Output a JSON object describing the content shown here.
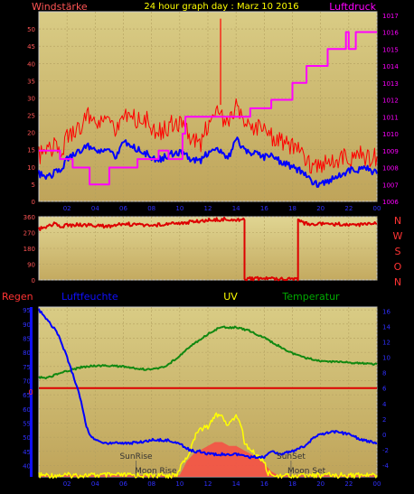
{
  "header": {
    "left": "Windstärke",
    "center": "24 hour graph day : Marz 10 2016",
    "right": "Luftdruck"
  },
  "footer": {
    "regen": "Regen",
    "luftfeuchte": "Luftfeuchte",
    "uv": "UV",
    "temperatur": "Temperatur"
  },
  "direction_letters": [
    "N",
    "W",
    "S",
    "O",
    "N"
  ],
  "annotations": {
    "sunrise": "SunRise",
    "moonrise": "Moon Rise",
    "sunset": "SunSet",
    "moonset": "Moon Set"
  },
  "colors": {
    "background": "#000000",
    "panel_bg": "#c9b66a",
    "panel_bg_light": "#e3d79a",
    "frame": "#d8d8d8",
    "gust": "#ff0000",
    "wind_avg": "#0000ff",
    "pressure": "#ff00ff",
    "direction": "#dd0000",
    "humidity": "#0000ff",
    "temperature": "#118811",
    "uv": "#ffff00",
    "solar": "#ff4040",
    "zero_line": "#dd0000",
    "left_axis_text": "#ff5555",
    "header_title": "#ffff00",
    "header_right": "#ff00ff",
    "humidity_label": "#1010ff",
    "uv_label": "#ffff00",
    "temp_label": "#00aa00"
  },
  "chart_data": [
    {
      "type": "line",
      "title": "",
      "x_ticks": [
        "02",
        "04",
        "06",
        "08",
        "10",
        "12",
        "14",
        "16",
        "18",
        "20",
        "22",
        "00"
      ],
      "xlim": [
        0,
        24
      ],
      "y_left": {
        "label": "Windstärke",
        "ticks": [
          0,
          5,
          10,
          15,
          20,
          25,
          30,
          35,
          40,
          45,
          50
        ],
        "lim": [
          0,
          55
        ]
      },
      "y_right": {
        "label": "Luftdruck",
        "ticks": [
          1006,
          1007,
          1008,
          1009,
          1010,
          1011,
          1012,
          1013,
          1014,
          1015,
          1016,
          1017
        ],
        "lim": [
          1006,
          1017.2
        ]
      },
      "series": [
        {
          "name": "gust",
          "axis": "left",
          "x": [
            0,
            0.5,
            1,
            1.5,
            2,
            2.5,
            3,
            3.5,
            4,
            4.5,
            5,
            5.5,
            6,
            6.5,
            7,
            7.5,
            8,
            8.5,
            9,
            9.5,
            10,
            10.5,
            11,
            11.5,
            12,
            12.5,
            12.9,
            13,
            13.5,
            14,
            14.5,
            15,
            15.5,
            16,
            16.5,
            17,
            17.5,
            18,
            18.5,
            19,
            19.5,
            20,
            20.5,
            21,
            21.5,
            22,
            22.5,
            23,
            23.5,
            24
          ],
          "y": [
            13,
            15,
            16,
            14,
            18,
            21,
            22,
            25,
            23,
            22,
            24,
            21,
            26,
            25,
            23,
            24,
            22,
            20,
            21,
            23,
            22,
            20,
            18,
            17,
            22,
            25,
            26,
            24,
            22,
            27,
            24,
            21,
            22,
            20,
            19,
            18,
            17,
            16,
            14,
            11,
            10,
            11,
            12,
            12,
            13,
            12,
            14,
            13,
            12,
            13
          ]
        },
        {
          "name": "wind_avg",
          "axis": "left",
          "x": [
            0,
            0.5,
            1,
            1.5,
            2,
            2.5,
            3,
            3.5,
            4,
            4.5,
            5,
            5.5,
            6,
            6.5,
            7,
            7.5,
            8,
            8.5,
            9,
            9.5,
            10,
            10.5,
            11,
            11.5,
            12,
            12.5,
            13,
            13.5,
            14,
            14.5,
            15,
            15.5,
            16,
            16.5,
            17,
            17.5,
            18,
            18.5,
            19,
            19.5,
            20,
            20.5,
            21,
            21.5,
            22,
            22.5,
            23,
            23.5,
            24
          ],
          "y": [
            8,
            7,
            8,
            9,
            12,
            14,
            15,
            16,
            15,
            14,
            15,
            13,
            18,
            16,
            15,
            14,
            13,
            12,
            13,
            14,
            14,
            13,
            12,
            12,
            14,
            15,
            14,
            13,
            18,
            15,
            14,
            14,
            13,
            13,
            12,
            11,
            10,
            9,
            7,
            5,
            5,
            6,
            7,
            8,
            9,
            9,
            10,
            9,
            8
          ]
        },
        {
          "name": "pressure",
          "axis": "right",
          "x": [
            0,
            1.5,
            1.5,
            2.4,
            2.4,
            3.0,
            3.0,
            3.6,
            3.6,
            5.0,
            5.0,
            7.0,
            7.0,
            8.5,
            8.5,
            9.2,
            9.2,
            10.2,
            10.2,
            10.4,
            10.4,
            12.0,
            12.0,
            15.0,
            15.0,
            16.5,
            16.5,
            18.0,
            18.0,
            19.0,
            19.0,
            20.5,
            20.5,
            21.8,
            21.8,
            22.0,
            22.0,
            22.5,
            22.5,
            22.8,
            22.8,
            24.0
          ],
          "y": [
            1009,
            1009,
            1008.5,
            1008.5,
            1008,
            1008,
            1008,
            1008,
            1007,
            1007,
            1008,
            1008,
            1008.5,
            1008.5,
            1009,
            1009,
            1008.5,
            1008.5,
            1010,
            1010,
            1011,
            1011,
            1011,
            1011,
            1011.5,
            1011.5,
            1012,
            1012,
            1013,
            1013,
            1014,
            1014,
            1015,
            1015,
            1016,
            1016,
            1015,
            1015,
            1016,
            1016,
            1016,
            1016
          ]
        }
      ]
    },
    {
      "type": "line",
      "title": "",
      "x_ticks": [
        "02",
        "04",
        "06",
        "08",
        "10",
        "12",
        "14",
        "16",
        "18",
        "20",
        "22",
        "00"
      ],
      "xlim": [
        0,
        24
      ],
      "y_left": {
        "ticks": [
          0,
          90,
          180,
          270,
          360
        ],
        "lim": [
          0,
          360
        ]
      },
      "series": [
        {
          "name": "wind_direction",
          "x": [
            0,
            0.5,
            1,
            1.5,
            2,
            3,
            4,
            5,
            6,
            7,
            8,
            9,
            10,
            11,
            12,
            13,
            14,
            14.6,
            14.6,
            18.4,
            18.4,
            19,
            20,
            21,
            22,
            23,
            24
          ],
          "y": [
            290,
            300,
            320,
            305,
            310,
            315,
            310,
            305,
            320,
            315,
            310,
            320,
            325,
            330,
            340,
            345,
            345,
            345,
            8,
            8,
            335,
            320,
            320,
            318,
            315,
            315,
            320
          ]
        }
      ]
    },
    {
      "type": "line",
      "title": "",
      "x_ticks": [
        "02",
        "04",
        "06",
        "08",
        "10",
        "12",
        "14",
        "16",
        "18",
        "20",
        "22",
        "00"
      ],
      "xlim": [
        0,
        24
      ],
      "y_left": {
        "label": "Luftfeuchte",
        "ticks": [
          40,
          45,
          50,
          55,
          60,
          65,
          70,
          75,
          80,
          85,
          90,
          95
        ],
        "lim": [
          36,
          96
        ]
      },
      "y_right": {
        "label": "Temperatur",
        "ticks": [
          -4,
          -2,
          0,
          2,
          4,
          6,
          8,
          10,
          12,
          14,
          16
        ],
        "lim": [
          -5.5,
          16.5
        ]
      },
      "zero_line_left": {
        "label": "0",
        "value_right_axis": 6
      },
      "series": [
        {
          "name": "humidity",
          "axis": "left",
          "x": [
            0,
            0.5,
            1,
            1.5,
            2,
            2.5,
            3,
            3.3,
            3.6,
            4,
            4.5,
            5,
            6,
            7,
            8,
            9,
            10,
            10.5,
            11,
            11.5,
            12,
            13,
            14,
            15,
            16,
            16.5,
            17,
            18,
            18.5,
            19,
            19.5,
            20,
            21,
            22,
            22.5,
            23,
            24
          ],
          "y": [
            95,
            92,
            89,
            85,
            78,
            71,
            63,
            55,
            51,
            49,
            48,
            48,
            48,
            48,
            49,
            49,
            48,
            46,
            45,
            45,
            44,
            44,
            44,
            43,
            43,
            45,
            44,
            45,
            46,
            47,
            50,
            51,
            52,
            51,
            50,
            49,
            48
          ]
        },
        {
          "name": "temperature",
          "axis": "right",
          "x": [
            0,
            0.5,
            1,
            2,
            3,
            4,
            5,
            6,
            7,
            8,
            9,
            10,
            11,
            11.5,
            12,
            12.5,
            13,
            13.5,
            14,
            15,
            16,
            17,
            18,
            19,
            20,
            21,
            22,
            23,
            24
          ],
          "y": [
            7.4,
            7.3,
            7.6,
            8.2,
            8.7,
            8.9,
            8.9,
            8.8,
            8.5,
            8.4,
            8.8,
            10.2,
            11.8,
            12.3,
            13,
            13.5,
            14,
            13.8,
            13.9,
            13.4,
            12.5,
            11.5,
            10.5,
            9.9,
            9.5,
            9.4,
            9.3,
            9.2,
            9.1
          ]
        },
        {
          "name": "uv",
          "axis": "right",
          "x": [
            0,
            9.8,
            10.0,
            10.5,
            11,
            11.2,
            12,
            12.6,
            13,
            13.4,
            14,
            14.4,
            14.6,
            15,
            16,
            16.2,
            17,
            24
          ],
          "y": [
            -5.3,
            -5.3,
            -4.5,
            -3,
            -1,
            0.5,
            1,
            2.5,
            2.5,
            1,
            2.5,
            1,
            -1,
            -2,
            -3.5,
            -5,
            -5.3,
            -5.3
          ]
        },
        {
          "name": "solar",
          "axis": "right",
          "x": [
            0,
            10,
            10.5,
            11,
            11.5,
            12,
            12.5,
            13,
            13.5,
            14,
            14.5,
            15,
            15.5,
            16,
            16.5,
            17,
            24
          ],
          "y": [
            -5.3,
            -5.3,
            -3.5,
            -2.5,
            -2,
            -1.5,
            -1,
            -1,
            -1.5,
            -1.5,
            -2,
            -2.5,
            -3,
            -3.8,
            -4.8,
            -5.3,
            -5.3
          ]
        }
      ],
      "markers": [
        {
          "name": "sunrise",
          "x": 6.9
        },
        {
          "name": "moonrise",
          "x": 8.3
        },
        {
          "name": "sunset",
          "x": 17.9
        },
        {
          "name": "moonset",
          "x": 19.0
        }
      ]
    }
  ]
}
